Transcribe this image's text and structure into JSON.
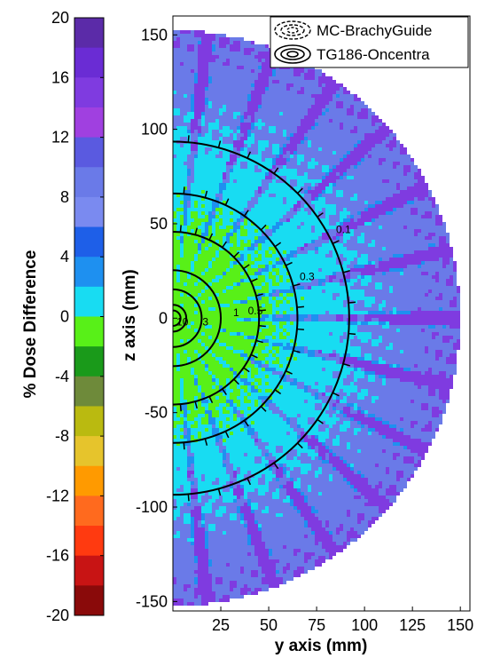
{
  "chart_data": {
    "type": "heatmap",
    "title": "",
    "colorbar": {
      "label": "% Dose Difference",
      "ticks": [
        20,
        16,
        12,
        8,
        4,
        0,
        -4,
        -8,
        -12,
        -16,
        -20
      ],
      "tick_labels": [
        "20",
        "16",
        "12",
        "8",
        "4",
        "0",
        "-4",
        "-8",
        "-12",
        "-16",
        "-20"
      ],
      "range": [
        -20,
        20
      ],
      "colors_top_to_bottom": [
        "#5B2BA8",
        "#6A2CD4",
        "#7F3BE0",
        "#A040E0",
        "#5A5AE0",
        "#6A7AE8",
        "#7A8AF0",
        "#1E5FE8",
        "#1E90F0",
        "#18DCF2",
        "#58F018",
        "#1A9A1A",
        "#6E8A3A",
        "#BABA10",
        "#E6C42C",
        "#FF9A00",
        "#FF6A1E",
        "#FF3A10",
        "#C81414",
        "#8A0A0A"
      ]
    },
    "x_axis": {
      "label": "y axis (mm)",
      "range": [
        0,
        155
      ],
      "ticks": [
        25,
        50,
        75,
        100,
        125,
        150
      ],
      "tick_labels": [
        "25",
        "50",
        "75",
        "100",
        "125",
        "150"
      ]
    },
    "y_axis": {
      "label": "z axis (mm)",
      "range": [
        -155,
        160
      ],
      "ticks": [
        150,
        100,
        50,
        0,
        -50,
        -100,
        -150
      ],
      "tick_labels": [
        "150",
        "100",
        "50",
        "0",
        "-50",
        "-100",
        "-150"
      ]
    },
    "data_extent_radius_mm": 150,
    "isodose_radii_mm": [
      4,
      7,
      15,
      25,
      45,
      65,
      92
    ],
    "isodose_labels": [
      {
        "text": "10",
        "y": 5,
        "z": -2
      },
      {
        "text": "3",
        "y": 17,
        "z": -2
      },
      {
        "text": "1",
        "y": 33,
        "z": 3
      },
      {
        "text": "0.5",
        "y": 43,
        "z": 4
      },
      {
        "text": "0.3",
        "y": 70,
        "z": 22
      },
      {
        "text": "0.1",
        "y": 89,
        "z": 47
      }
    ],
    "legend": {
      "position": "top-right",
      "entries": [
        {
          "label": "MC-BrachyGuide",
          "style": "dashed"
        },
        {
          "label": "TG186-Oncentra",
          "style": "solid"
        }
      ]
    },
    "grid": false
  }
}
